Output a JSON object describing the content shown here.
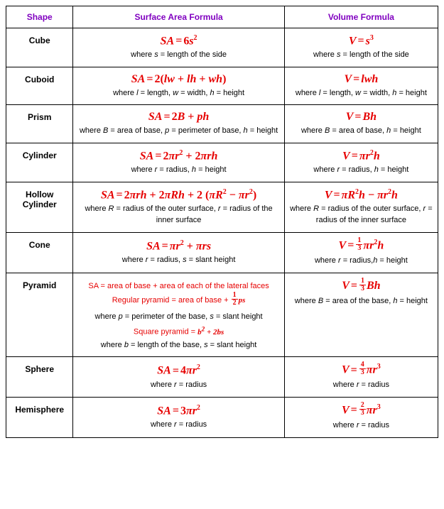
{
  "styling": {
    "header_color": "#8000c0",
    "formula_color": "#e60000",
    "text_color": "#000000",
    "border_color": "#000000",
    "background": "#ffffff",
    "header_fontsize": 13,
    "formula_fontsize": 16,
    "where_fontsize": 11,
    "shape_col_width": 80,
    "sa_col_width": 280,
    "vol_col_width": 200
  },
  "headers": {
    "shape": "Shape",
    "sa": "Surface Area Formula",
    "vol": "Volume Formula"
  },
  "rows": {
    "cube": {
      "name": "Cube",
      "sa_formula_html": "<i>SA</i><span class='eq'>=</span><span class='num'>6</span><i>s</i><sup>2</sup>",
      "sa_where_html": "where <i>s</i> = length of the side",
      "vol_formula_html": "<i>V</i><span class='eq'>=</span><i>s</i><sup>3</sup>",
      "vol_where_html": "where <i>s</i> = length of the side"
    },
    "cuboid": {
      "name": "Cuboid",
      "sa_formula_html": "<i>SA</i><span class='eq'>=</span><span class='num'>2(</span><i>lw</i><span class='num'> + </span><i>lh</i><span class='num'> + </span><i>wh</i><span class='num'>)</span>",
      "sa_where_html": "where <i>l</i> = length, <i>w</i> = width, <i>h</i> = height",
      "vol_formula_html": "<i>V</i><span class='eq'>=</span><i>lwh</i>",
      "vol_where_html": "where <i>l</i> = length, <i>w</i> = width, <i>h</i> = height"
    },
    "prism": {
      "name": "Prism",
      "sa_formula_html": "<i>SA</i><span class='eq'>=</span><span class='num'>2</span><i>B</i><span class='num'> + </span><i>ph</i>",
      "sa_where_html": "where <i>B</i> = area of base, <i>p</i> = perimeter of base, <i>h</i> = height",
      "vol_formula_html": "<i>V</i><span class='eq'>=</span><i>Bh</i>",
      "vol_where_html": "where <i>B</i> = area of base, <i>h</i> = height"
    },
    "cylinder": {
      "name": "Cylinder",
      "sa_formula_html": "<i>SA</i><span class='eq'>=</span><span class='num'>2</span><i>πr</i><sup>2</sup><span class='num'> + 2</span><i>πrh</i>",
      "sa_where_html": "where <i>r</i> = radius, <i>h</i> = height",
      "vol_formula_html": "<i>V</i><span class='eq'>=</span><i>πr</i><sup>2</sup><i>h</i>",
      "vol_where_html": "where <i>r</i> = radius, <i>h</i> = height"
    },
    "hollow": {
      "name": "Hollow Cylinder",
      "sa_formula_html": "<i>SA</i><span class='eq'>=</span><span class='num'>2</span><i>πrh</i><span class='num'> + 2</span><i>πRh</i><span class='num'> + 2 (</span><i>πR</i><sup>2</sup><span class='num'> − </span><i>πr</i><sup>2</sup><span class='num'>)</span>",
      "sa_where_html": "where <i>R</i> = radius of the outer surface, <i>r</i> = radius of the inner surface",
      "vol_formula_html": "<i>V</i><span class='eq'>=</span><i>πR</i><sup>2</sup><i>h</i><span class='num'> − </span><i>πr</i><sup>2</sup><i>h</i>",
      "vol_where_html": "where <i>R</i> = radius of the outer surface, <i>r</i> = radius of the inner surface"
    },
    "cone": {
      "name": "Cone",
      "sa_formula_html": "<i>SA</i><span class='eq'>=</span><i>πr</i><sup>2</sup><span class='num'> + </span><i>πrs</i>",
      "sa_where_html": "where <i>r</i> = radius, <i>s</i> = slant height",
      "vol_formula_html": "<i>V</i><span class='eq'>=</span><span class='frac'><span class='n'>1</span><span class='d'>3</span></span><i>πr</i><sup>2</sup><i>h</i>",
      "vol_where_html": "where <i>r</i> = radius,<i>h</i> = height"
    },
    "pyramid": {
      "name": "Pyramid",
      "sa_block_html": "<span class='redline'>SA = area of base + area of each of the lateral faces</span><span class='redline'>Regular pyramid = area of base + <span class='mini'><span class='frac'><span class='n'>1</span><span class='d'>2</span></span>ps</span></span><span class='where'>where <i>p</i> = perimeter of the base, <i>s</i> = slant height</span><span class='redline'>Square pyramid = <span class='mini'>b<sup>2</sup> + <span class='num'>2</span>bs</span></span><span class='where'>where <i>b</i> = length of the base, <i>s</i> = slant height</span>",
      "vol_formula_html": "<i>V</i><span class='eq'>=</span><span class='frac'><span class='n'>1</span><span class='d'>3</span></span><i>Bh</i>",
      "vol_where_html": "where <i>B</i> = area of the base, <i>h</i> = height"
    },
    "sphere": {
      "name": "Sphere",
      "sa_formula_html": "<i>SA</i><span class='eq'>=</span><span class='num'>4</span><i>πr</i><sup>2</sup>",
      "sa_where_html": "where <i>r</i> = radius",
      "vol_formula_html": "<i>V</i><span class='eq'>=</span><span class='frac'><span class='n'>4</span><span class='d'>3</span></span><i>πr</i><sup>3</sup>",
      "vol_where_html": "where <i>r</i> = radius"
    },
    "hemisphere": {
      "name": "Hemisphere",
      "sa_formula_html": "<i>SA</i><span class='eq'>=</span><span class='num'>3</span><i>πr</i><sup>2</sup>",
      "sa_where_html": "where <i>r</i> = radius",
      "vol_formula_html": "<i>V</i><span class='eq'>=</span><span class='frac'><span class='n'>2</span><span class='d'>3</span></span><i>πr</i><sup>3</sup>",
      "vol_where_html": "where <i>r</i> = radius"
    }
  },
  "row_order": [
    "cube",
    "cuboid",
    "prism",
    "cylinder",
    "hollow",
    "cone",
    "pyramid",
    "sphere",
    "hemisphere"
  ]
}
